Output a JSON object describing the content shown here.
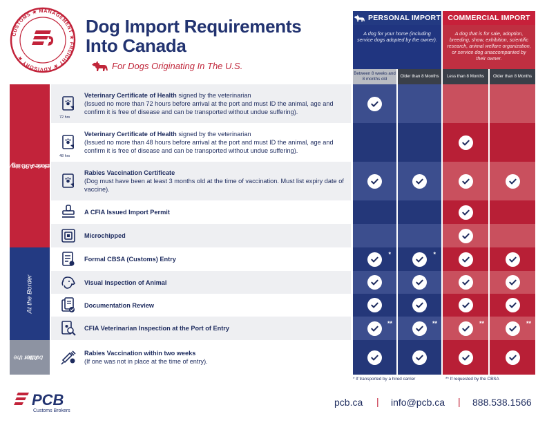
{
  "seal": {
    "words": [
      "CUSTOMS",
      "MANAGEMENT",
      "FREIGHT",
      "ADVISORY"
    ]
  },
  "title": [
    "Dog Import Requirements",
    "Into Canada"
  ],
  "subtitle": "For Dogs Originating In The U.S.",
  "columns": {
    "personal": {
      "label": "PERSONAL IMPORT",
      "description": "A dog for your home (including service dogs adopted by the owner)."
    },
    "commercial": {
      "label": "COMMERCIAL IMPORT",
      "description": "A dog that is for sale, adoption, breeding, show, exhibition, scientific research, animal welfare organization, or service dog unaccompanied by their owner."
    },
    "subheaders": [
      "Between 8 weeks and 8 months old",
      "Older than 8 Months",
      "Less than 8 Months",
      "Older than 8 Months"
    ]
  },
  "sections": [
    {
      "label": "Arrange Before Arriving at the Border",
      "sublabel": "(Recommended 30 days prior)"
    },
    {
      "label": "At the Border",
      "sublabel": ""
    },
    {
      "label": "After the",
      "sublabel": "border"
    }
  ],
  "rows": [
    {
      "icon": "certificate-paw-icon",
      "note": "72 hrs",
      "title": "Veterinary Certificate of Health",
      "rest": " signed by the veterinarian",
      "detail": "(Issued no more than 72 hours before arrival at the port and must ID the animal, age and confirm it is free of disease and can be transported without undue suffering).",
      "checks": [
        true,
        false,
        false,
        false
      ],
      "marks": [
        "",
        "",
        "",
        ""
      ]
    },
    {
      "icon": "certificate-paw-icon",
      "note": "48 hrs",
      "title": "Veterinary Certificate of Health",
      "rest": " signed by the veterinarian",
      "detail": "(Issued no more than 48 hours before arrival at the port and must ID the animal, age and confirm it is free of disease and can be transported without undue suffering).",
      "checks": [
        false,
        false,
        true,
        false
      ],
      "marks": [
        "",
        "",
        "",
        ""
      ]
    },
    {
      "icon": "certificate-paw-icon",
      "note": "",
      "title": "Rabies Vaccination Certificate",
      "rest": "",
      "detail": "(Dog must have been at least 3 months old at the time of vaccination. Must list expiry date of vaccine).",
      "checks": [
        true,
        true,
        true,
        true
      ],
      "marks": [
        "",
        "",
        "",
        ""
      ]
    },
    {
      "icon": "stamp-icon",
      "note": "",
      "title": "",
      "rest": "A CFIA Issued Import Permit",
      "detail": "",
      "checks": [
        false,
        false,
        true,
        false
      ],
      "marks": [
        "",
        "",
        "",
        ""
      ]
    },
    {
      "icon": "microchip-icon",
      "note": "",
      "title": "",
      "rest": "Microchipped",
      "detail": "",
      "checks": [
        false,
        false,
        true,
        false
      ],
      "marks": [
        "",
        "",
        "",
        ""
      ]
    },
    {
      "icon": "customs-form-icon",
      "note": "",
      "title": "",
      "rest": "Formal CBSA (Customs) Entry",
      "detail": "",
      "checks": [
        true,
        true,
        true,
        true
      ],
      "marks": [
        "*",
        "*",
        "",
        ""
      ]
    },
    {
      "icon": "dog-head-icon",
      "note": "",
      "title": "",
      "rest": "Visual Inspection of Animal",
      "detail": "",
      "checks": [
        true,
        true,
        true,
        true
      ],
      "marks": [
        "",
        "",
        "",
        ""
      ]
    },
    {
      "icon": "documents-check-icon",
      "note": "",
      "title": "",
      "rest": "Documentation Review",
      "detail": "",
      "checks": [
        true,
        true,
        true,
        true
      ],
      "marks": [
        "",
        "",
        "",
        ""
      ]
    },
    {
      "icon": "magnify-paw-icon",
      "note": "",
      "title": "",
      "rest": "CFIA Veterinarian Inspection at the Port of Entry",
      "detail": "",
      "checks": [
        true,
        true,
        true,
        true
      ],
      "marks": [
        "**",
        "**",
        "**",
        "**"
      ]
    },
    {
      "icon": "syringe-icon",
      "note": "",
      "title": "Rabies Vaccination within two weeks",
      "rest": "",
      "detail": "(If one was not in place at the time of entry).",
      "checks": [
        true,
        true,
        true,
        true
      ],
      "marks": [
        "",
        "",
        "",
        ""
      ]
    }
  ],
  "footnotes": [
    "* If transported by a hired carrier",
    "** If requested by the CBSA"
  ],
  "footer": {
    "logo_text": "PCB",
    "logo_sub": "Customs Brokers",
    "website": "pcb.ca",
    "email": "info@pcb.ca",
    "phone": "888.538.1566",
    "separator": "|"
  },
  "colors": {
    "navy": "#233a82",
    "red": "#c2233a",
    "personal_cell_a": "#3c4e8e",
    "personal_cell_b": "#243779",
    "commercial_cell_a": "#c9505e",
    "commercial_cell_b": "#b81f36"
  }
}
